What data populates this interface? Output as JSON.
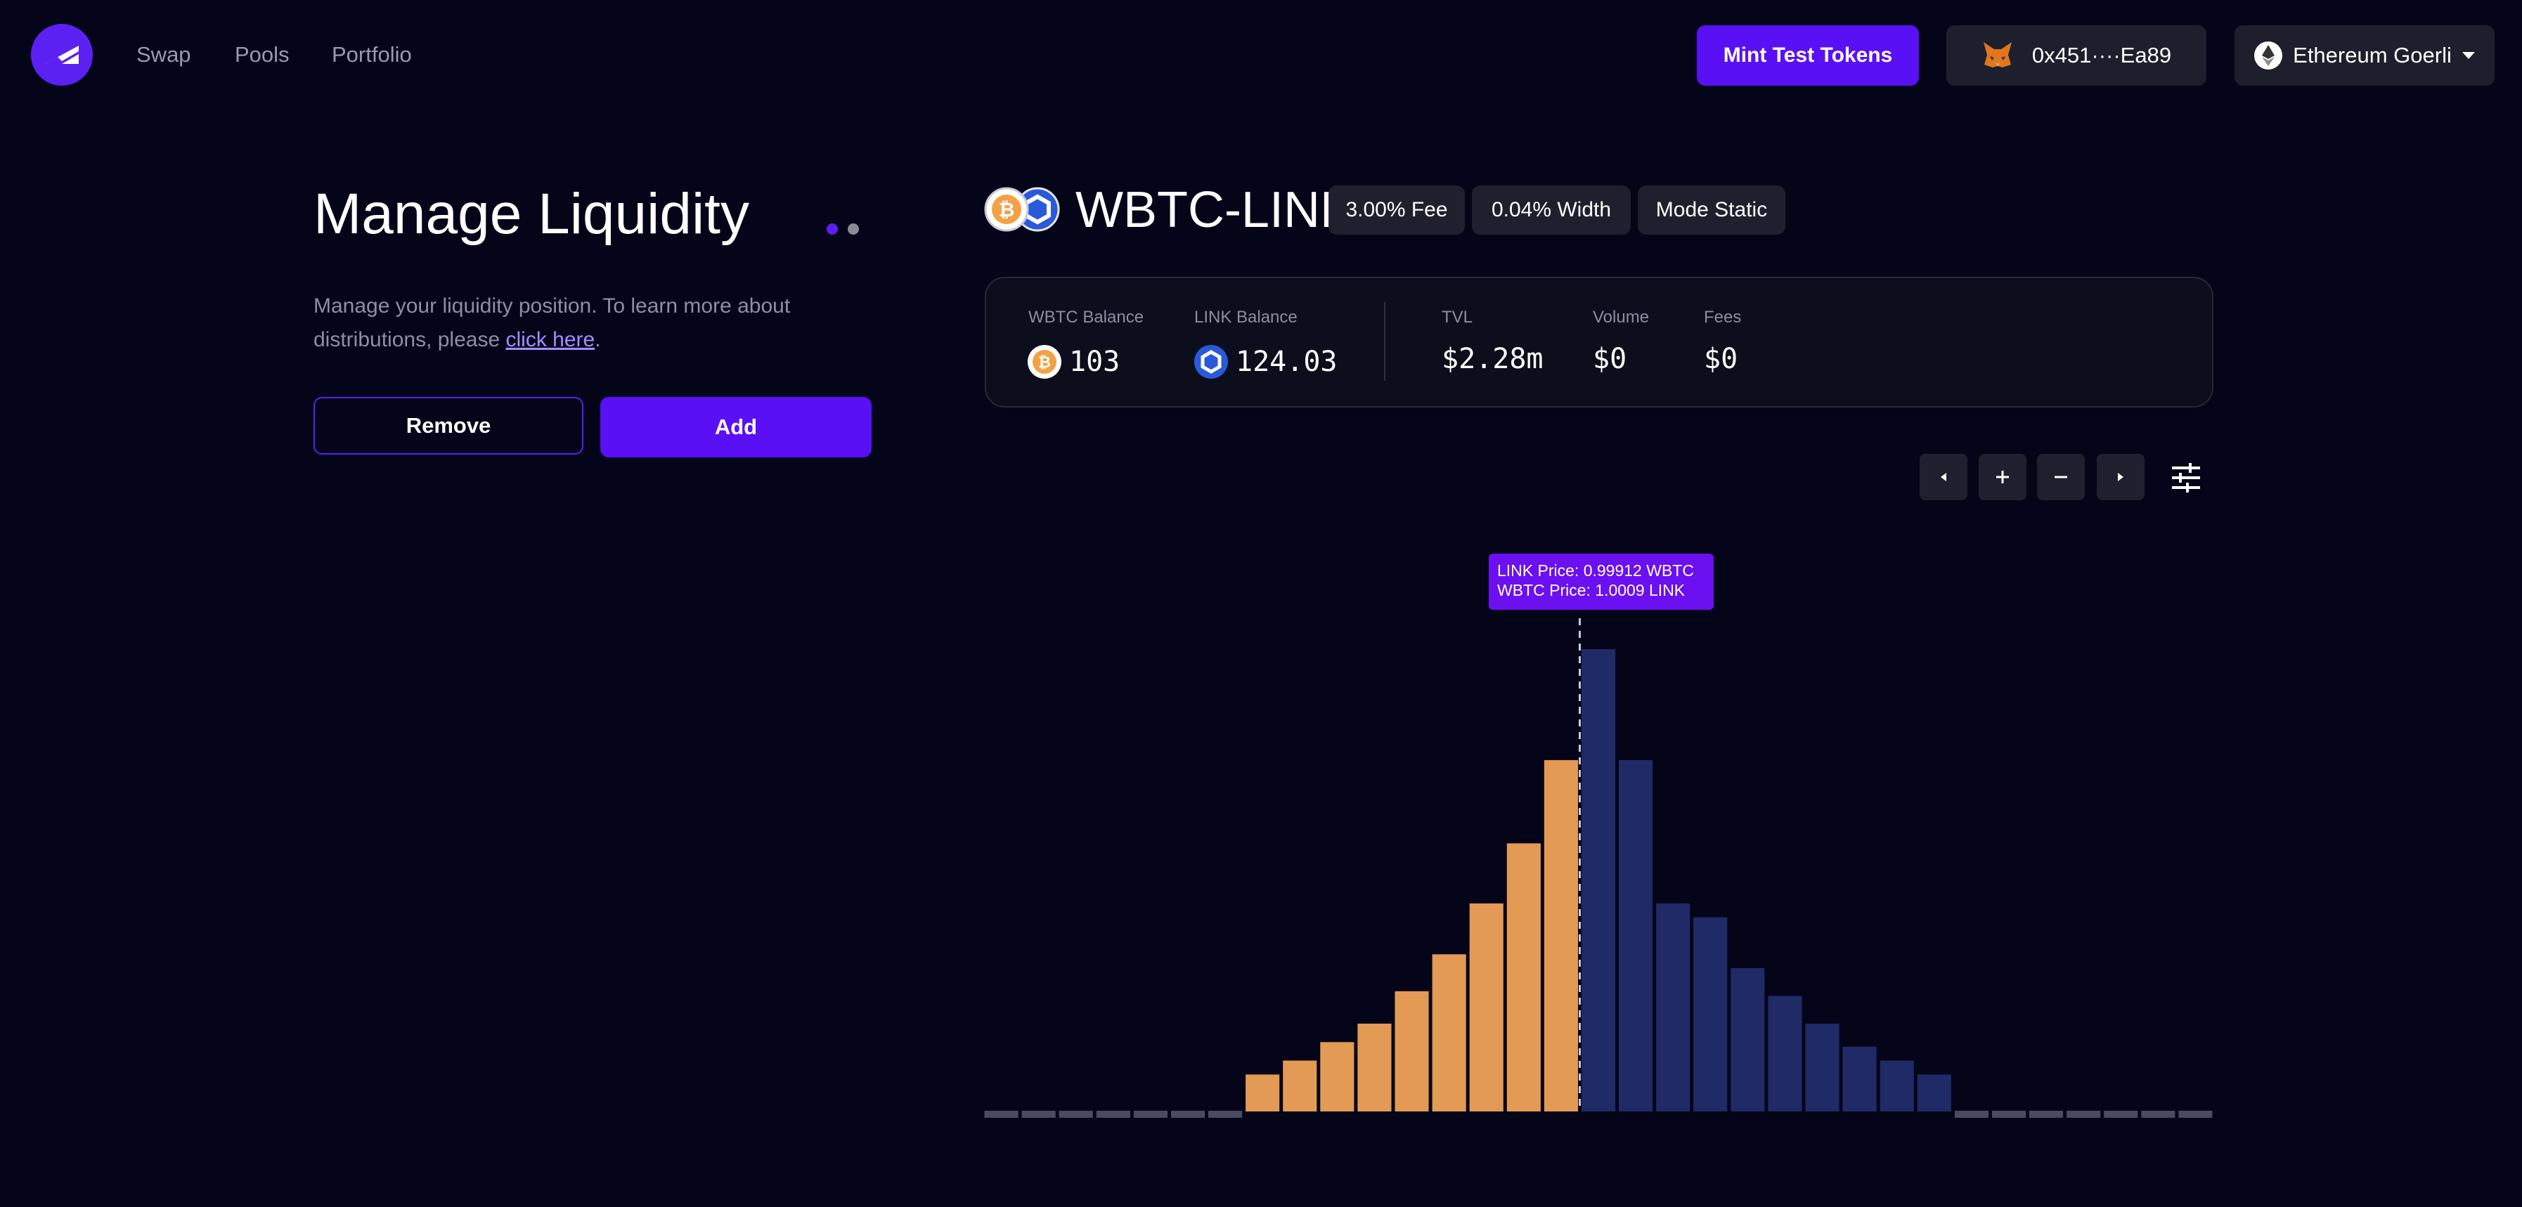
{
  "nav": {
    "links": [
      "Swap",
      "Pools",
      "Portfolio"
    ],
    "mint_label": "Mint Test Tokens",
    "wallet_address": "0x451····Ea89",
    "network_label": "Ethereum Goerli"
  },
  "page": {
    "title": "Manage Liquidity",
    "desc_text": "Manage your liquidity position. To learn more about distributions, please ",
    "desc_link": "click here",
    "desc_end": ".",
    "remove_label": "Remove",
    "add_label": "Add"
  },
  "pool": {
    "pair": "WBTC-LINK",
    "fee": "3.00% Fee",
    "width": "0.04% Width",
    "mode": "Mode Static"
  },
  "stats": {
    "wbtc_balance_label": "WBTC Balance",
    "wbtc_balance": "103",
    "link_balance_label": "LINK Balance",
    "link_balance": "124.03",
    "tvl_label": "TVL",
    "tvl": "$2.28m",
    "volume_label": "Volume",
    "volume": "$0",
    "fees_label": "Fees",
    "fees": "$0"
  },
  "tooltip": {
    "line1": "LINK Price:  0.99912 WBTC",
    "line2": "WBTC Price:  1.0009 LINK"
  },
  "colors": {
    "accent": "#5910f5",
    "background": "#05051a",
    "wbtc_bar": "#e39a55",
    "link_bar": "#1f2a66",
    "empty_bar": "#4a4c5e"
  },
  "chart_data": {
    "type": "bar",
    "values": [
      0,
      0,
      0,
      0,
      0,
      0,
      0,
      8,
      11,
      15,
      19,
      26,
      34,
      45,
      58,
      76,
      100,
      76,
      45,
      42,
      31,
      25,
      19,
      14,
      11,
      8,
      0,
      0,
      0,
      0,
      0,
      0,
      0
    ],
    "token": [
      "empty",
      "empty",
      "empty",
      "empty",
      "empty",
      "empty",
      "empty",
      "WBTC",
      "WBTC",
      "WBTC",
      "WBTC",
      "WBTC",
      "WBTC",
      "WBTC",
      "WBTC",
      "WBTC",
      "LINK",
      "LINK",
      "LINK",
      "LINK",
      "LINK",
      "LINK",
      "LINK",
      "LINK",
      "LINK",
      "LINK",
      "empty",
      "empty",
      "empty",
      "empty",
      "empty",
      "empty",
      "empty"
    ],
    "current_price_index": 16,
    "grid": false
  }
}
